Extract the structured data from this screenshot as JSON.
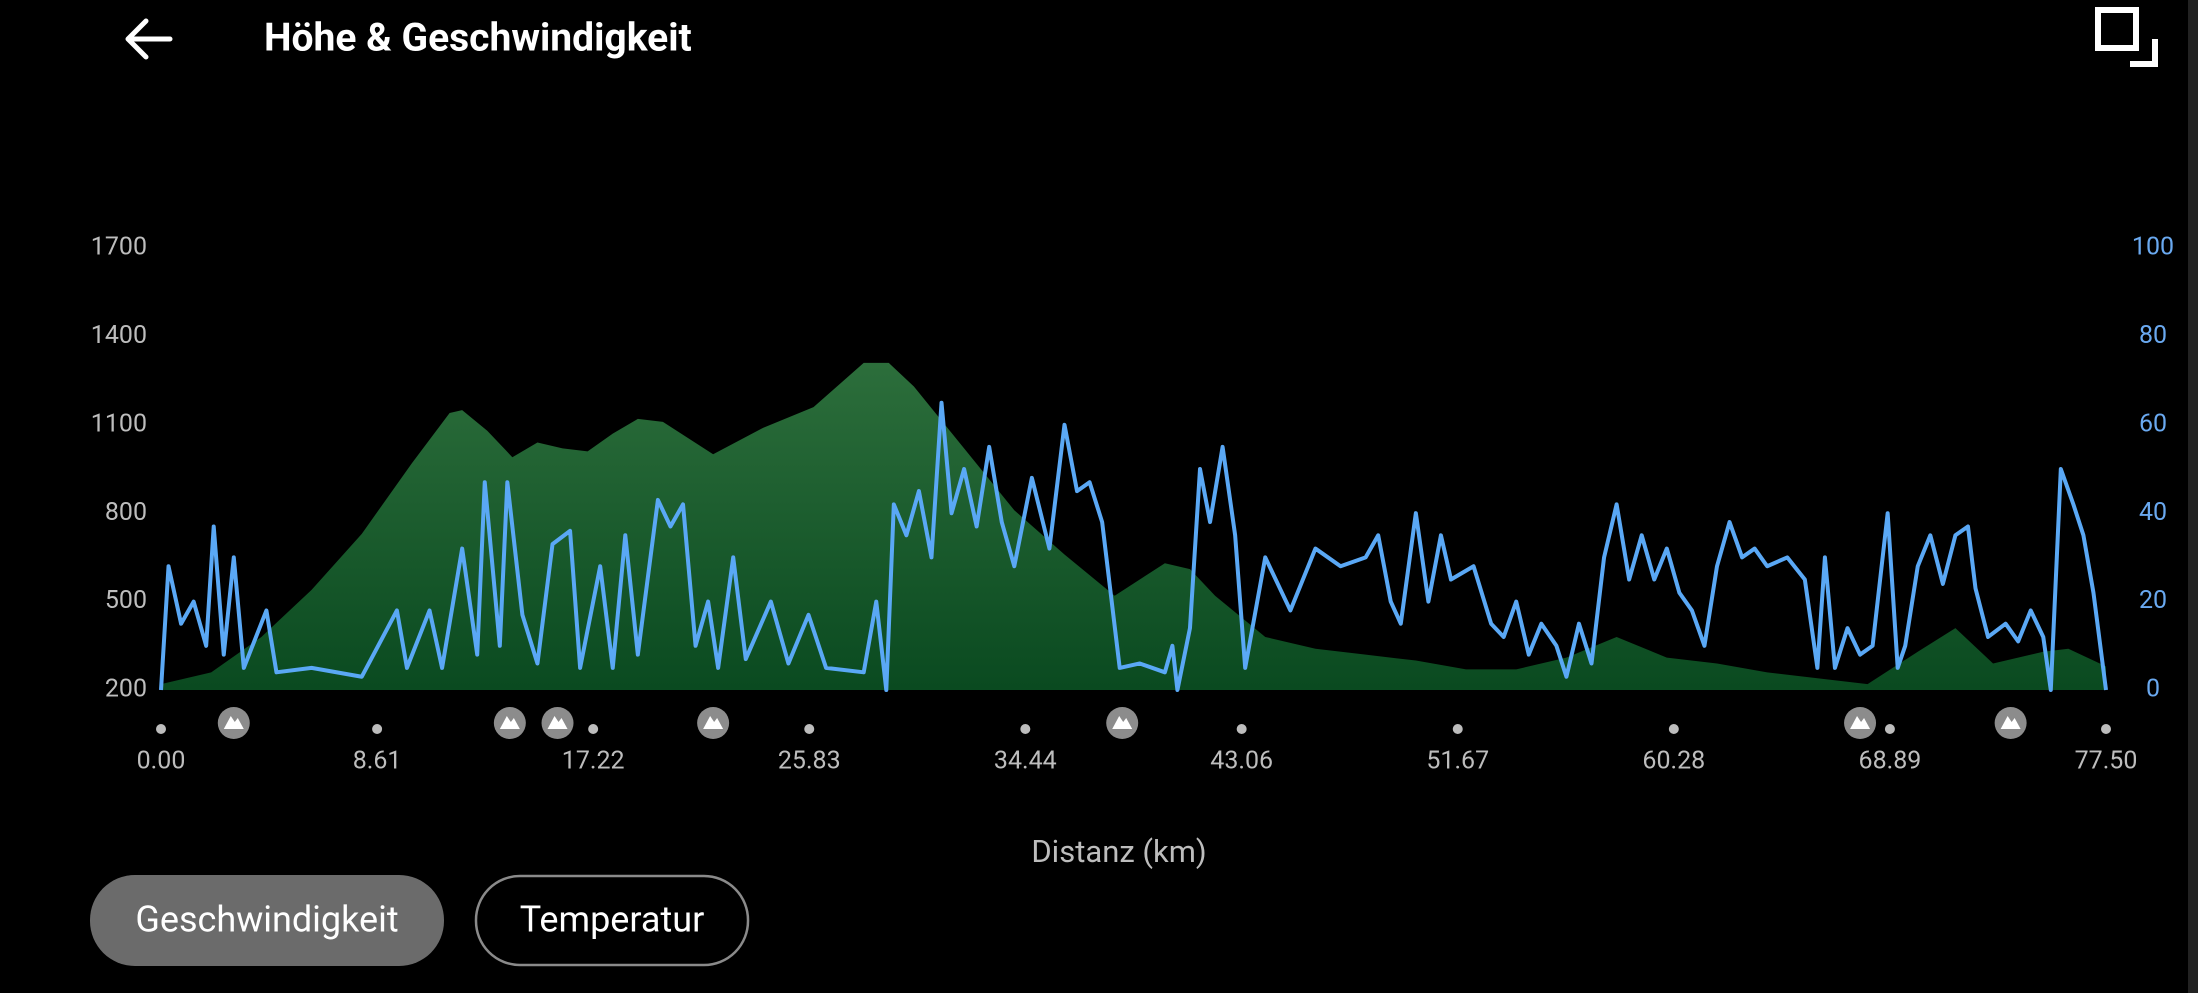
{
  "header": {
    "title": "Höhe & Geschwindigkeit"
  },
  "buttons": [
    "Geschwindigkeit",
    "Temperatur"
  ],
  "chart_data": {
    "type": "area-line",
    "x_label": "Distanz (km)",
    "xlim": [
      0,
      77.5
    ],
    "xticks": [
      {
        "value": 0,
        "label": "0.00"
      },
      8.61,
      17.22,
      25.83,
      34.44,
      43.06,
      51.67,
      60.28,
      68.89,
      {
        "value": 77.5,
        "label": "77.50"
      }
    ],
    "ylim": [
      200,
      1700
    ],
    "yticks": [
      200,
      500,
      800,
      1100,
      1400,
      1700
    ],
    "y2lim": [
      0,
      100
    ],
    "y2ticks": [
      0,
      20,
      40,
      60,
      80,
      100
    ],
    "markers": [
      2.9,
      13.9,
      15.8,
      22.0,
      38.3,
      67.7,
      73.7
    ],
    "series": [
      {
        "name": "Höhe",
        "kind": "area",
        "color": "#1f6a34",
        "x": [
          0,
          2,
          4,
          6,
          8,
          10,
          11.5,
          12,
          13,
          14,
          15,
          16,
          17,
          18,
          19,
          20,
          22,
          24,
          26,
          28,
          29,
          30,
          32,
          34,
          36,
          38,
          40,
          41,
          42,
          44,
          46,
          48,
          50,
          52,
          54,
          56,
          58,
          60,
          62,
          64,
          66,
          68,
          70,
          71.5,
          73,
          75,
          76,
          77.5
        ],
        "values": [
          220,
          260,
          380,
          540,
          730,
          970,
          1140,
          1150,
          1080,
          990,
          1040,
          1020,
          1010,
          1070,
          1120,
          1110,
          1000,
          1090,
          1160,
          1310,
          1310,
          1230,
          1020,
          810,
          660,
          520,
          630,
          610,
          520,
          380,
          340,
          320,
          300,
          270,
          270,
          310,
          380,
          310,
          290,
          260,
          240,
          220,
          330,
          410,
          290,
          330,
          340,
          280
        ]
      },
      {
        "name": "Geschwindigkeit",
        "kind": "line",
        "axis": "y2",
        "color": "#5aa8f5",
        "x": [
          0,
          0.3,
          0.8,
          1.3,
          1.8,
          2.1,
          2.5,
          2.9,
          3.3,
          4.2,
          4.6,
          6,
          8,
          9.4,
          9.8,
          10.7,
          11.2,
          12,
          12.6,
          12.9,
          13.5,
          13.8,
          14.4,
          15,
          15.6,
          16.3,
          16.7,
          17.5,
          18,
          18.5,
          19,
          19.8,
          20.3,
          20.8,
          21.3,
          21.8,
          22.2,
          22.8,
          23.3,
          24.3,
          25,
          25.8,
          26.5,
          28,
          28.5,
          28.9,
          29.2,
          29.7,
          30.2,
          30.7,
          31.1,
          31.5,
          32,
          32.5,
          33,
          33.5,
          34,
          34.7,
          35.4,
          36,
          36.5,
          37,
          37.5,
          38.2,
          39,
          40,
          40.3,
          40.5,
          41,
          41.4,
          41.8,
          42.3,
          42.8,
          43.2,
          44,
          45,
          46,
          47,
          48,
          48.5,
          49,
          49.4,
          50,
          50.5,
          51,
          51.4,
          52.3,
          53,
          53.5,
          54,
          54.5,
          55,
          55.6,
          56,
          56.5,
          57,
          57.5,
          58,
          58.5,
          59,
          59.5,
          60,
          60.5,
          61,
          61.5,
          62,
          62.5,
          63,
          63.5,
          64,
          64.8,
          65.5,
          66,
          66.3,
          66.7,
          67.2,
          67.7,
          68.2,
          68.8,
          69.2,
          69.5,
          70,
          70.5,
          71,
          71.5,
          72,
          72.3,
          72.8,
          73.5,
          74,
          74.5,
          75,
          75.3,
          75.7,
          76.2,
          76.6,
          77,
          77.5
        ],
        "values": [
          0,
          28,
          15,
          20,
          10,
          37,
          8,
          30,
          5,
          18,
          4,
          5,
          3,
          18,
          5,
          18,
          5,
          32,
          8,
          47,
          10,
          47,
          17,
          6,
          33,
          36,
          5,
          28,
          5,
          35,
          8,
          43,
          37,
          42,
          10,
          20,
          5,
          30,
          7,
          20,
          6,
          17,
          5,
          4,
          20,
          0,
          42,
          35,
          45,
          30,
          65,
          40,
          50,
          37,
          55,
          38,
          28,
          48,
          32,
          60,
          45,
          47,
          38,
          5,
          6,
          4,
          10,
          0,
          14,
          50,
          38,
          55,
          35,
          5,
          30,
          18,
          32,
          28,
          30,
          35,
          20,
          15,
          40,
          20,
          35,
          25,
          28,
          15,
          12,
          20,
          8,
          15,
          10,
          3,
          15,
          6,
          30,
          42,
          25,
          35,
          25,
          32,
          22,
          18,
          10,
          28,
          38,
          30,
          32,
          28,
          30,
          25,
          5,
          30,
          5,
          14,
          8,
          10,
          40,
          5,
          10,
          28,
          35,
          24,
          35,
          37,
          23,
          12,
          15,
          11,
          18,
          12,
          0,
          50,
          42,
          35,
          22,
          0
        ]
      }
    ]
  }
}
